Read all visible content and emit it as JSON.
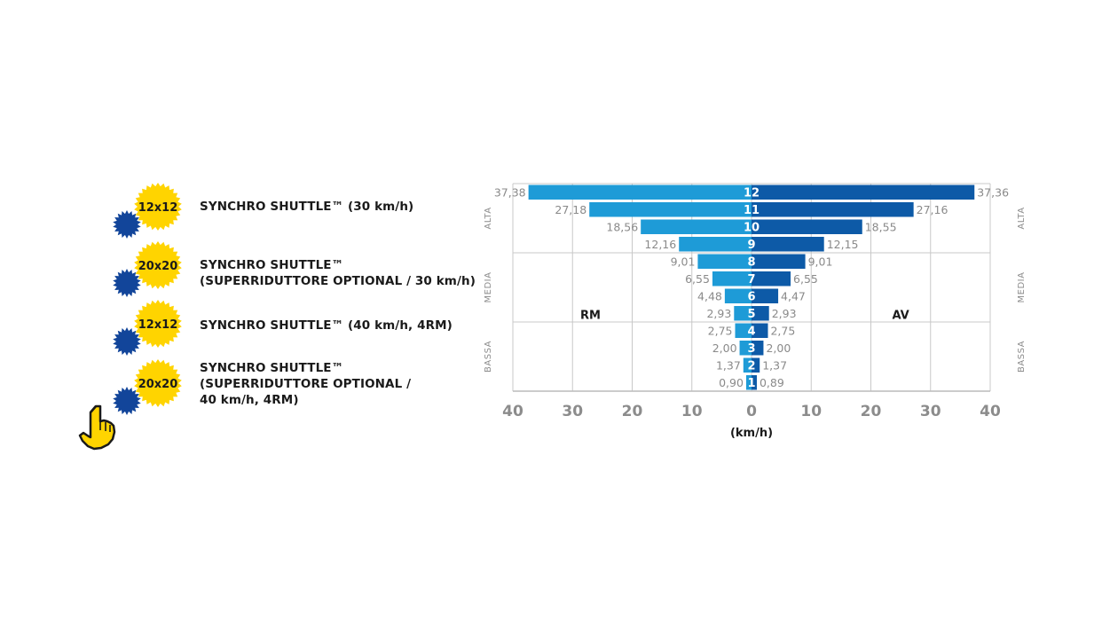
{
  "options": [
    {
      "badge": "12x12",
      "lines": [
        "SYNCHRO SHUTTLE™ (30 km/h)"
      ]
    },
    {
      "badge": "20x20",
      "lines": [
        "SYNCHRO SHUTTLE™",
        "(SUPERRIDUTTORE OPTIONAL / 30 km/h)"
      ]
    },
    {
      "badge": "12x12",
      "lines": [
        "SYNCHRO SHUTTLE™ (40 km/h, 4RM)"
      ]
    },
    {
      "badge": "20x20",
      "lines": [
        "SYNCHRO SHUTTLE™",
        "(SUPERRIDUTTORE OPTIONAL /",
        "40 km/h, 4RM)"
      ]
    }
  ],
  "selected_option": 3,
  "icons": {
    "badge": "gear-badge-icon",
    "pointer": "hand-pointer-icon"
  },
  "colors": {
    "badge_yellow": "#FFD400",
    "badge_blue": "#12459A",
    "bar_light": "#1E9BD7",
    "bar_dark": "#0D5AA7",
    "grid": "#c8c8c8"
  },
  "chart_data": {
    "type": "bar",
    "orientation": "horizontal-diverging",
    "categories": [
      "12",
      "11",
      "10",
      "9",
      "8",
      "7",
      "6",
      "5",
      "4",
      "3",
      "2",
      "1"
    ],
    "series": [
      {
        "name": "RM",
        "display": [
          "37,38",
          "27,18",
          "18,56",
          "12,16",
          "9,01",
          "6,55",
          "4,48",
          "2,93",
          "2,75",
          "2,00",
          "1,37",
          "0,90"
        ],
        "values": [
          37.38,
          27.18,
          18.56,
          12.16,
          9.01,
          6.55,
          4.48,
          2.93,
          2.75,
          2.0,
          1.37,
          0.9
        ]
      },
      {
        "name": "AV",
        "display": [
          "37,36",
          "27,16",
          "18,55",
          "12,15",
          "9,01",
          "6,55",
          "4,47",
          "2,93",
          "2,75",
          "2,00",
          "1,37",
          "0,89"
        ],
        "values": [
          37.36,
          27.16,
          18.55,
          12.15,
          9.01,
          6.55,
          4.47,
          2.93,
          2.75,
          2.0,
          1.37,
          0.89
        ]
      }
    ],
    "groups": [
      {
        "name": "ALTA",
        "from": 0,
        "to": 3
      },
      {
        "name": "MEDIA",
        "from": 4,
        "to": 7
      },
      {
        "name": "BASSA",
        "from": 8,
        "to": 11
      }
    ],
    "x_ticks": [
      "40",
      "30",
      "20",
      "10",
      "0",
      "10",
      "20",
      "30",
      "40"
    ],
    "xlim": [
      -40,
      40
    ],
    "xlabel": "(km/h)",
    "left_label": "RM",
    "right_label": "AV",
    "grid": true
  }
}
